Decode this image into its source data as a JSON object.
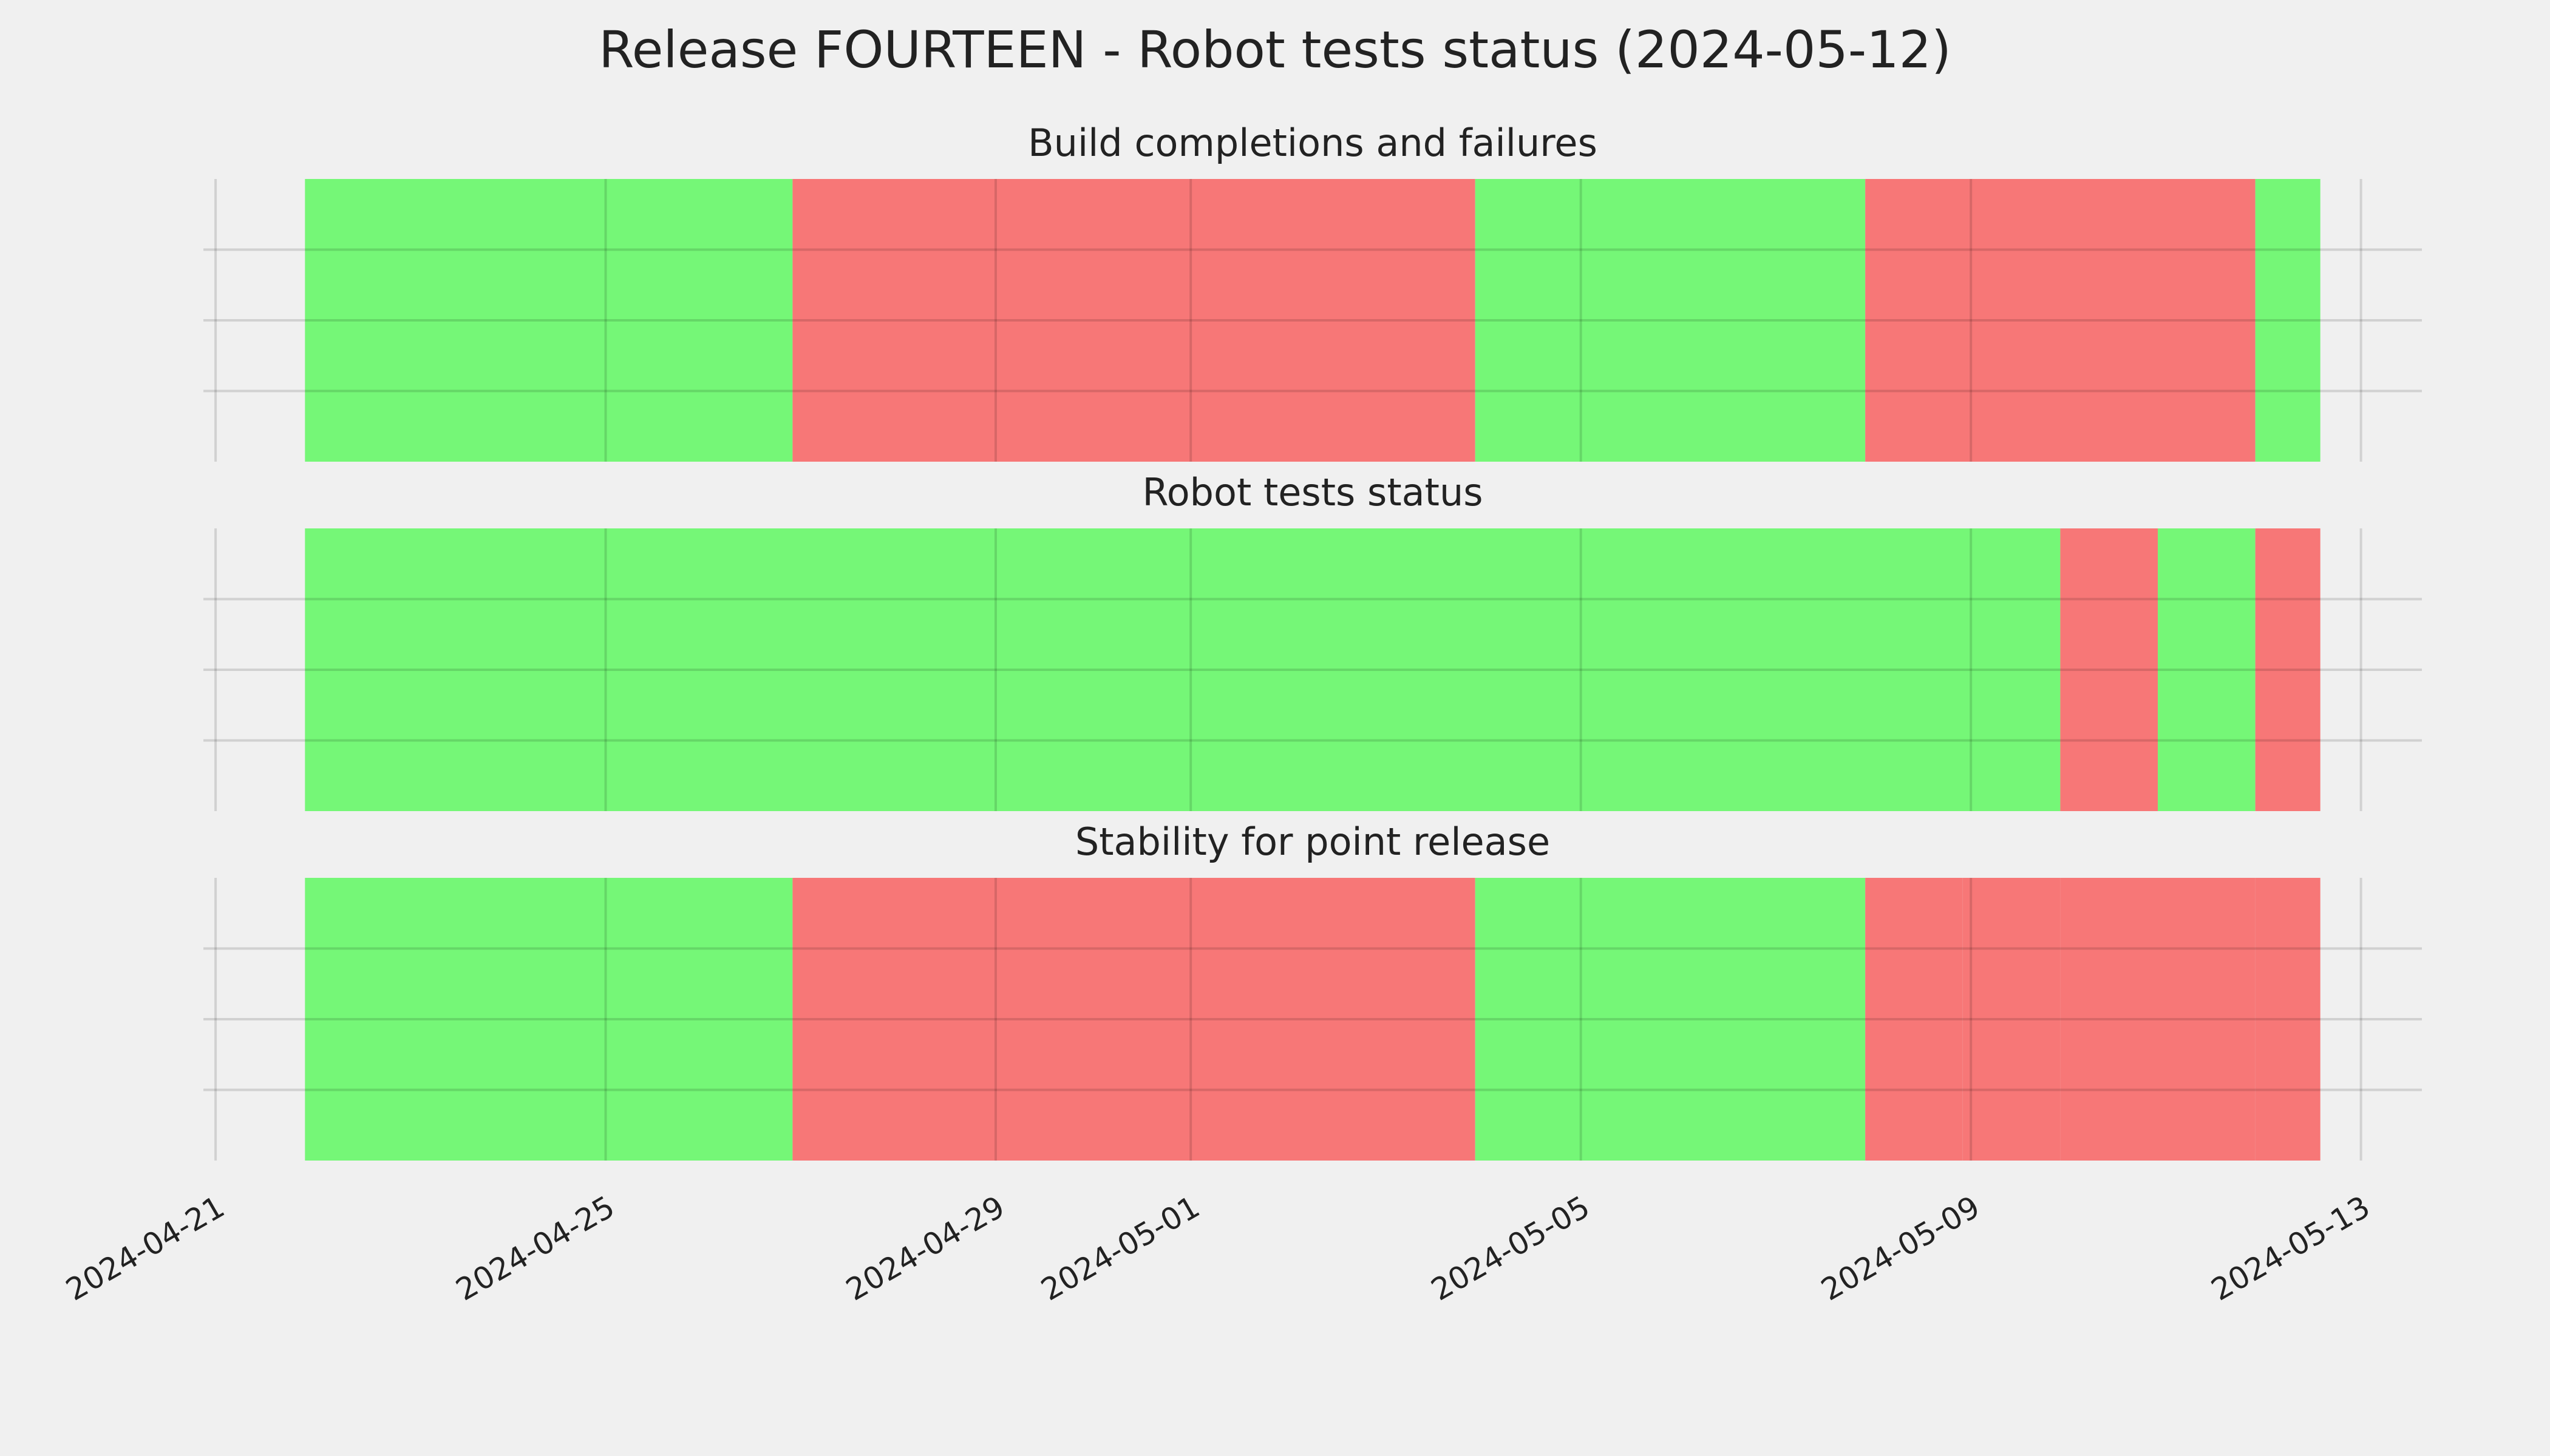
{
  "title": "Release FOURTEEN - Robot tests status (2024-05-12)",
  "chart_data": [
    {
      "type": "timeline",
      "title": "Build completions and failures",
      "xlim": [
        "2024-04-20T21:00",
        "2024-05-13T15:00"
      ],
      "xticks": [
        "2024-04-21",
        "2024-04-25",
        "2024-04-29",
        "2024-05-01",
        "2024-05-05",
        "2024-05-09",
        "2024-05-13"
      ],
      "ylim": [
        0,
        1
      ],
      "yticks": [
        0.25,
        0.5,
        0.75
      ],
      "grid": true,
      "spans": [
        {
          "start": "2024-04-21T22:00",
          "end": "2024-04-26T22:00",
          "color": "#75f777"
        },
        {
          "start": "2024-04-26T22:00",
          "end": "2024-05-03T22:00",
          "color": "#f77777"
        },
        {
          "start": "2024-05-03T22:00",
          "end": "2024-05-07T22:00",
          "color": "#75f777"
        },
        {
          "start": "2024-05-07T22:00",
          "end": "2024-05-11T22:00",
          "color": "#f77777"
        },
        {
          "start": "2024-05-11T22:00",
          "end": "2024-05-12T14:00",
          "color": "#75f777"
        }
      ]
    },
    {
      "type": "timeline",
      "title": "Robot tests status",
      "xlim": [
        "2024-04-20T21:00",
        "2024-05-13T15:00"
      ],
      "xticks": [
        "2024-04-21",
        "2024-04-25",
        "2024-04-29",
        "2024-05-01",
        "2024-05-05",
        "2024-05-09",
        "2024-05-13"
      ],
      "ylim": [
        0,
        1
      ],
      "yticks": [
        0.25,
        0.5,
        0.75
      ],
      "grid": true,
      "spans": [
        {
          "start": "2024-04-21T22:00",
          "end": "2024-05-09T22:00",
          "color": "#75f777"
        },
        {
          "start": "2024-05-09T22:00",
          "end": "2024-05-10T22:00",
          "color": "#f77777"
        },
        {
          "start": "2024-05-10T22:00",
          "end": "2024-05-11T22:00",
          "color": "#75f777"
        },
        {
          "start": "2024-05-11T22:00",
          "end": "2024-05-12T14:00",
          "color": "#f77777"
        }
      ]
    },
    {
      "type": "timeline",
      "title": "Stability for point release",
      "xlim": [
        "2024-04-20T21:00",
        "2024-05-13T15:00"
      ],
      "xticks": [
        "2024-04-21",
        "2024-04-25",
        "2024-04-29",
        "2024-05-01",
        "2024-05-05",
        "2024-05-09",
        "2024-05-13"
      ],
      "ylim": [
        0,
        1
      ],
      "yticks": [
        0.25,
        0.5,
        0.75
      ],
      "grid": true,
      "spans": [
        {
          "start": "2024-04-21T22:00",
          "end": "2024-04-26T22:00",
          "color": "#75f777"
        },
        {
          "start": "2024-04-26T22:00",
          "end": "2024-05-03T22:00",
          "color": "#f77777"
        },
        {
          "start": "2024-05-03T22:00",
          "end": "2024-05-07T22:00",
          "color": "#75f777"
        },
        {
          "start": "2024-05-07T22:00",
          "end": "2024-05-08T22:00",
          "color": "#f77777"
        },
        {
          "start": "2024-05-08T22:00",
          "end": "2024-05-09T22:00",
          "color": "#f77777"
        },
        {
          "start": "2024-05-09T22:00",
          "end": "2024-05-10T22:00",
          "color": "#f77777"
        },
        {
          "start": "2024-05-10T22:00",
          "end": "2024-05-11T22:00",
          "color": "#f77777"
        },
        {
          "start": "2024-05-11T22:00",
          "end": "2024-05-12T14:00",
          "color": "#f77777"
        }
      ]
    }
  ]
}
